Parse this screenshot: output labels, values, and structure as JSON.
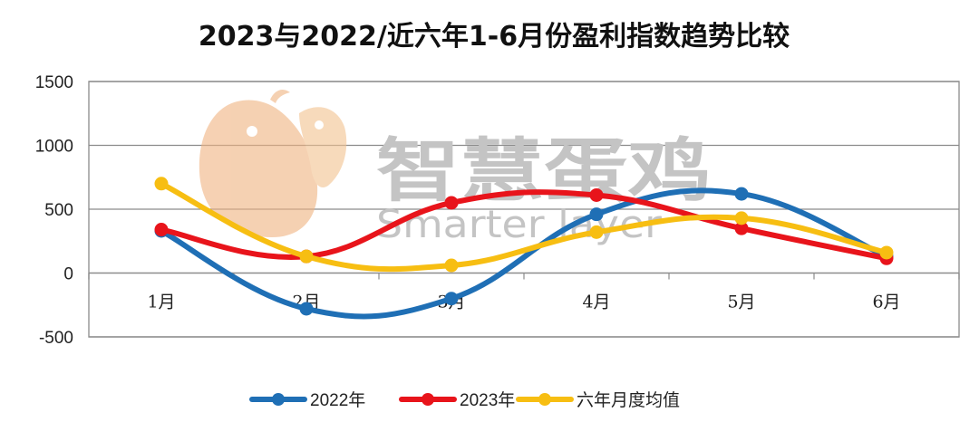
{
  "chart_data": {
    "type": "line",
    "title": "2023与2022/近六年1-6月份盈利指数趋势比较",
    "categories": [
      "1月",
      "2月",
      "3月",
      "4月",
      "5月",
      "6月"
    ],
    "series": [
      {
        "name": "2022年",
        "color": "#1f6fb5",
        "values": [
          330,
          -280,
          -200,
          460,
          620,
          130
        ]
      },
      {
        "name": "2023年",
        "color": "#e8141b",
        "values": [
          340,
          130,
          550,
          610,
          350,
          115
        ]
      },
      {
        "name": "六年月度均值",
        "color": "#f7be12",
        "values": [
          700,
          130,
          60,
          320,
          430,
          160
        ]
      }
    ],
    "yticks": [
      1500,
      1000,
      500,
      0,
      -500
    ],
    "ylim": [
      -500,
      1500
    ],
    "xlabel": "",
    "ylabel": "",
    "grid": true,
    "legend": "bottom"
  },
  "watermark": {
    "text_cn": "智慧蛋鸡",
    "text_en": "Smarter layer"
  }
}
